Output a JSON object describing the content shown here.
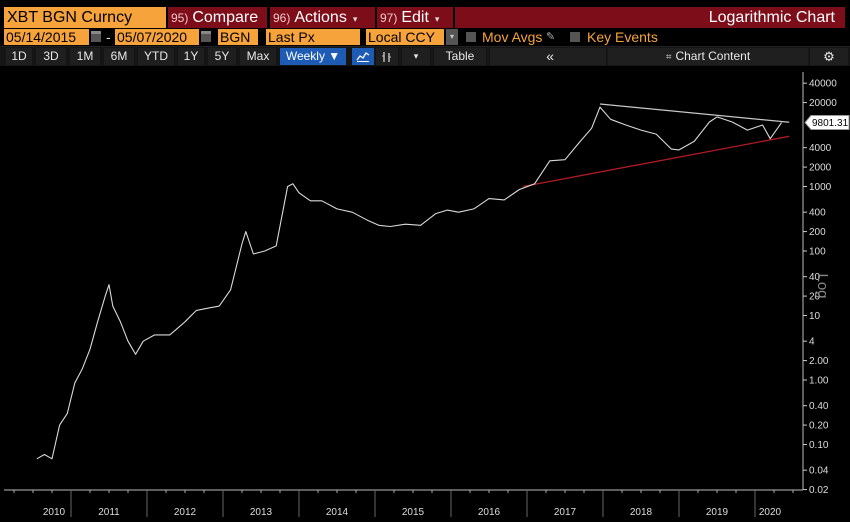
{
  "header": {
    "ticker": "XBT BGN Curncy",
    "buttons": [
      {
        "num": "95)",
        "label": "Compare",
        "dropdown": false
      },
      {
        "num": "96)",
        "label": "Actions",
        "dropdown": true
      },
      {
        "num": "97)",
        "label": "Edit",
        "dropdown": true
      }
    ],
    "chart_title": "Logarithmic Chart"
  },
  "params": {
    "start_date": "05/14/2015",
    "separator": "-",
    "end_date": "05/07/2020",
    "source": "BGN",
    "field": "Last Px",
    "currency": "Local CCY",
    "mov_avgs_label": "Mov Avgs",
    "key_events_label": "Key Events"
  },
  "toolbar": {
    "periods": [
      "1D",
      "3D",
      "1M",
      "6M",
      "YTD",
      "1Y",
      "5Y",
      "Max"
    ],
    "frequency": "Weekly ▼",
    "line_icon": "line-chart-icon",
    "bar_icon": "bar-chart-icon",
    "dropdown_caret": "▾",
    "table_label": "Table",
    "collapse_icon": "«",
    "chart_content_label": "Chart Content",
    "settings_icon": "⚙"
  },
  "colors": {
    "orange": "#f7a33c",
    "dark_red": "#7d0d19",
    "active_blue": "#1e5bb5",
    "price_line": "#d9d9d9",
    "resistance_line": "#c8c8c8",
    "support_line": "#b01a24",
    "background": "#000000"
  },
  "chart_data": {
    "type": "line",
    "title": "Logarithmic Chart",
    "xlabel": "",
    "ylabel": "Log",
    "y_scale": "log",
    "ylim": [
      0.02,
      40000
    ],
    "grid": false,
    "legend": null,
    "x_tick_labels": [
      "2010",
      "2011",
      "2012",
      "2013",
      "2014",
      "2015",
      "2016",
      "2017",
      "2018",
      "2019",
      "2020"
    ],
    "y_tick_labels": [
      "40000",
      "20000",
      "4000",
      "2000",
      "1000",
      "400",
      "200",
      "100",
      "40",
      "20",
      "10",
      "4",
      "2.00",
      "1.00",
      "0.40",
      "0.20",
      "0.10",
      "0.04",
      "0.02"
    ],
    "last_price_label": "9801.31",
    "series": [
      {
        "name": "XBT BGN Curncy Last Px",
        "x": [
          2010.55,
          2010.65,
          2010.75,
          2010.85,
          2010.95,
          2011.05,
          2011.15,
          2011.25,
          2011.35,
          2011.45,
          2011.5,
          2011.55,
          2011.65,
          2011.75,
          2011.85,
          2011.95,
          2012.1,
          2012.3,
          2012.5,
          2012.65,
          2012.8,
          2012.95,
          2013.1,
          2013.25,
          2013.3,
          2013.4,
          2013.55,
          2013.7,
          2013.85,
          2013.92,
          2014.0,
          2014.15,
          2014.3,
          2014.5,
          2014.7,
          2014.9,
          2015.05,
          2015.2,
          2015.4,
          2015.6,
          2015.8,
          2015.95,
          2016.1,
          2016.3,
          2016.5,
          2016.7,
          2016.9,
          2017.1,
          2017.3,
          2017.5,
          2017.7,
          2017.85,
          2017.96,
          2018.1,
          2018.3,
          2018.5,
          2018.7,
          2018.9,
          2019.0,
          2019.2,
          2019.4,
          2019.5,
          2019.7,
          2019.9,
          2020.1,
          2020.2,
          2020.35
        ],
        "values": [
          0.06,
          0.07,
          0.06,
          0.2,
          0.3,
          0.9,
          1.5,
          3,
          8,
          20,
          30,
          14,
          8,
          4,
          2.5,
          4,
          5,
          5,
          8,
          12,
          13,
          14,
          25,
          130,
          200,
          90,
          100,
          120,
          1000,
          1100,
          800,
          600,
          600,
          450,
          400,
          300,
          250,
          240,
          260,
          250,
          380,
          430,
          400,
          450,
          650,
          620,
          900,
          1100,
          2500,
          2600,
          5000,
          8000,
          17000,
          11000,
          9000,
          7500,
          6500,
          3800,
          3700,
          5000,
          10000,
          12000,
          10000,
          7500,
          9000,
          5500,
          9801.31
        ]
      }
    ],
    "annotations": [
      {
        "type": "trendline",
        "name": "resistance",
        "from": [
          2017.96,
          19000
        ],
        "to": [
          2020.45,
          9900
        ]
      },
      {
        "type": "trendline",
        "name": "support",
        "from": [
          2016.95,
          1000
        ],
        "to": [
          2020.45,
          6000
        ]
      }
    ]
  }
}
